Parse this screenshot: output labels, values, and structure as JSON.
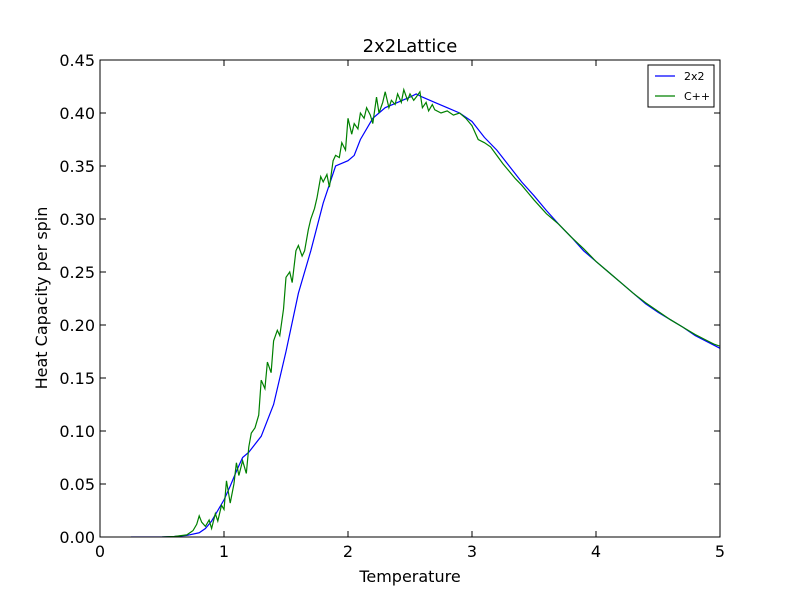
{
  "chart_data": {
    "type": "line",
    "title": "2x2Lattice",
    "xlabel": "Temperature",
    "ylabel": "Heat Capacity per spin",
    "xlim": [
      0,
      5
    ],
    "ylim": [
      0,
      0.45
    ],
    "xticks": [
      0,
      1,
      2,
      3,
      4,
      5
    ],
    "xtick_labels": [
      "0",
      "1",
      "2",
      "3",
      "4",
      "5"
    ],
    "yticks": [
      0,
      0.05,
      0.1,
      0.15,
      0.2,
      0.25,
      0.3,
      0.35,
      0.4,
      0.45
    ],
    "ytick_labels": [
      "0.00",
      "0.05",
      "0.10",
      "0.15",
      "0.20",
      "0.25",
      "0.30",
      "0.35",
      "0.40",
      "0.45"
    ],
    "grid": false,
    "legend_position": "top-right",
    "series": [
      {
        "name": "2x2",
        "color": "#0000ff",
        "x": [
          0.25,
          0.5,
          0.6,
          0.7,
          0.8,
          0.85,
          0.9,
          0.95,
          1.0,
          1.05,
          1.1,
          1.15,
          1.2,
          1.3,
          1.4,
          1.5,
          1.6,
          1.7,
          1.8,
          1.9,
          2.0,
          2.05,
          2.1,
          2.2,
          2.3,
          2.4,
          2.5,
          2.55,
          2.6,
          2.7,
          2.8,
          2.9,
          3.0,
          3.1,
          3.2,
          3.3,
          3.4,
          3.5,
          3.6,
          3.7,
          3.8,
          3.9,
          4.0,
          4.1,
          4.2,
          4.3,
          4.4,
          4.5,
          4.6,
          4.7,
          4.8,
          4.9,
          5.0
        ],
        "y": [
          0.0,
          0.0,
          0.0005,
          0.0015,
          0.004,
          0.008,
          0.015,
          0.025,
          0.035,
          0.048,
          0.062,
          0.075,
          0.08,
          0.095,
          0.125,
          0.175,
          0.23,
          0.27,
          0.315,
          0.35,
          0.355,
          0.36,
          0.375,
          0.395,
          0.405,
          0.41,
          0.415,
          0.418,
          0.415,
          0.41,
          0.405,
          0.4,
          0.392,
          0.377,
          0.365,
          0.35,
          0.335,
          0.322,
          0.308,
          0.295,
          0.283,
          0.27,
          0.26,
          0.25,
          0.24,
          0.23,
          0.22,
          0.212,
          0.205,
          0.198,
          0.19,
          0.184,
          0.178
        ]
      },
      {
        "name": "C++",
        "color": "#008000",
        "x": [
          0.5,
          0.6,
          0.7,
          0.75,
          0.78,
          0.8,
          0.82,
          0.85,
          0.88,
          0.9,
          0.93,
          0.95,
          0.98,
          1.0,
          1.02,
          1.05,
          1.08,
          1.1,
          1.12,
          1.15,
          1.18,
          1.2,
          1.22,
          1.25,
          1.28,
          1.3,
          1.33,
          1.35,
          1.38,
          1.4,
          1.43,
          1.45,
          1.48,
          1.5,
          1.53,
          1.55,
          1.58,
          1.6,
          1.63,
          1.65,
          1.68,
          1.7,
          1.73,
          1.75,
          1.78,
          1.8,
          1.83,
          1.85,
          1.88,
          1.9,
          1.93,
          1.95,
          1.98,
          2.0,
          2.03,
          2.05,
          2.08,
          2.1,
          2.13,
          2.15,
          2.18,
          2.2,
          2.23,
          2.25,
          2.28,
          2.3,
          2.33,
          2.35,
          2.38,
          2.4,
          2.43,
          2.45,
          2.48,
          2.5,
          2.53,
          2.55,
          2.58,
          2.6,
          2.63,
          2.65,
          2.68,
          2.7,
          2.75,
          2.8,
          2.85,
          2.9,
          2.95,
          3.0,
          3.05,
          3.1,
          3.15,
          3.2,
          3.25,
          3.3,
          3.35,
          3.4,
          3.45,
          3.5,
          3.6,
          3.7,
          3.8,
          3.9,
          4.0,
          4.1,
          4.2,
          4.3,
          4.4,
          4.5,
          4.6,
          4.7,
          4.8,
          4.9,
          4.95,
          5.0
        ],
        "y": [
          0.0,
          0.0005,
          0.002,
          0.006,
          0.012,
          0.02,
          0.014,
          0.01,
          0.016,
          0.008,
          0.022,
          0.015,
          0.03,
          0.026,
          0.053,
          0.032,
          0.05,
          0.07,
          0.058,
          0.072,
          0.06,
          0.085,
          0.098,
          0.103,
          0.115,
          0.148,
          0.14,
          0.165,
          0.155,
          0.185,
          0.195,
          0.19,
          0.215,
          0.245,
          0.25,
          0.24,
          0.27,
          0.275,
          0.265,
          0.27,
          0.29,
          0.3,
          0.31,
          0.32,
          0.34,
          0.335,
          0.342,
          0.33,
          0.355,
          0.36,
          0.358,
          0.372,
          0.365,
          0.395,
          0.38,
          0.39,
          0.385,
          0.4,
          0.395,
          0.405,
          0.398,
          0.39,
          0.415,
          0.4,
          0.41,
          0.42,
          0.405,
          0.412,
          0.408,
          0.418,
          0.41,
          0.422,
          0.412,
          0.418,
          0.412,
          0.415,
          0.42,
          0.405,
          0.41,
          0.402,
          0.408,
          0.403,
          0.4,
          0.402,
          0.398,
          0.4,
          0.395,
          0.388,
          0.375,
          0.372,
          0.368,
          0.36,
          0.352,
          0.345,
          0.338,
          0.332,
          0.325,
          0.318,
          0.305,
          0.295,
          0.283,
          0.272,
          0.26,
          0.25,
          0.24,
          0.23,
          0.221,
          0.213,
          0.205,
          0.198,
          0.191,
          0.185,
          0.182,
          0.18
        ]
      }
    ]
  }
}
